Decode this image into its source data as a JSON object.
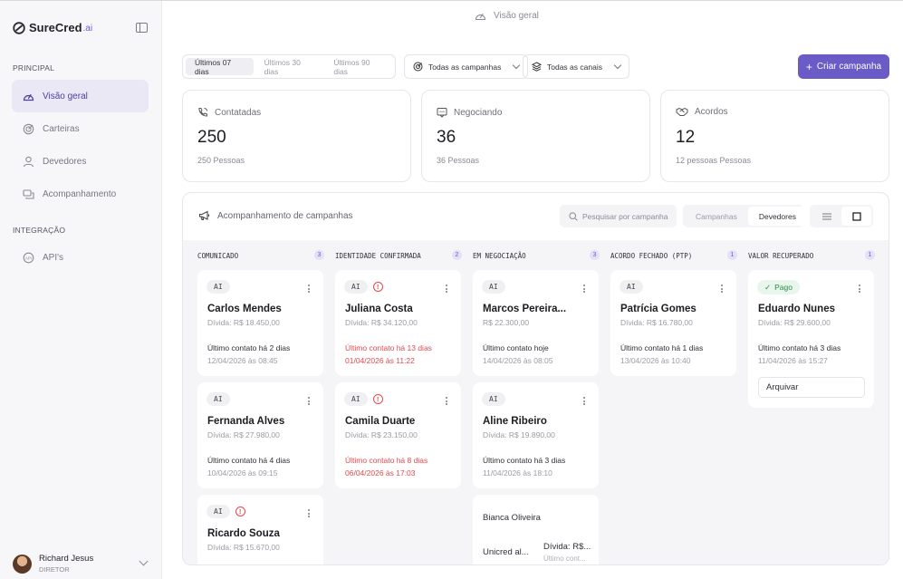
{
  "brand": {
    "name": "SureCred",
    "suffix": ".ai"
  },
  "sidebar": {
    "section_principal": "PRINCIPAL",
    "items": [
      {
        "label": "Visão geral",
        "icon": "gauge-icon",
        "active": true
      },
      {
        "label": "Carteiras",
        "icon": "target-icon"
      },
      {
        "label": "Devedores",
        "icon": "user-icon"
      },
      {
        "label": "Acompanhamento",
        "icon": "chat-icon"
      }
    ],
    "section_integracao": "INTEGRAÇÃO",
    "integration_items": [
      {
        "label": "API's",
        "icon": "api-icon"
      }
    ],
    "user": {
      "name": "Richard Jesus",
      "role": "DIRETOR"
    }
  },
  "header": {
    "title": "Visão geral"
  },
  "filters": {
    "periods": [
      "Últimos 07 dias",
      "Últimos 30 dias",
      "Últimos 90 dias"
    ],
    "campaigns": "Todas as campanhas",
    "channels": "Todas as canais",
    "create_label": "Criar campanha"
  },
  "stats": [
    {
      "label": "Contatadas",
      "value": "250",
      "sub": "250 Pessoas",
      "icon": "phone-icon"
    },
    {
      "label": "Negociando",
      "value": "36",
      "sub": "36 Pessoas",
      "icon": "message-icon"
    },
    {
      "label": "Acordos",
      "value": "12",
      "sub": "12 pessoas Pessoas",
      "icon": "handshake-icon"
    }
  ],
  "board": {
    "title": "Acompanhamento de campanhas",
    "search_placeholder": "Pesquisar por campanha",
    "view_tabs": [
      "Campanhas",
      "Devedores"
    ],
    "columns": [
      {
        "title": "COMUNICADO",
        "count": "3",
        "cards": [
          {
            "tag": "AI",
            "warn": false,
            "name": "Carlos Mendes",
            "debt": "Dívida: R$ 18.450,00",
            "contact": "Último contato há 2 dias",
            "date": "12/04/2026 às 08:45",
            "overdue": false
          },
          {
            "tag": "AI",
            "warn": false,
            "name": "Fernanda Alves",
            "debt": "Dívida: R$ 27.980,00",
            "contact": "Último contato há 4 dias",
            "date": "10/04/2026 às 09:15",
            "overdue": false
          },
          {
            "tag": "AI",
            "warn": true,
            "name": "Ricardo Souza",
            "debt": "Dívida: R$ 15.670,00"
          }
        ]
      },
      {
        "title": "IDENTIDADE CONFIRMADA",
        "count": "2",
        "cards": [
          {
            "tag": "AI",
            "warn": true,
            "name": "Juliana Costa",
            "debt": "Dívida: R$ 34.120,00",
            "contact": "Último contato há 13 dias",
            "date": "01/04/2026 às 11:22",
            "overdue": true
          },
          {
            "tag": "AI",
            "warn": true,
            "name": "Camila Duarte",
            "debt": "Dívida: R$ 23.150,00",
            "contact": "Último contato há 8 dias",
            "date": "06/04/2026 às 17:03",
            "overdue": true
          }
        ]
      },
      {
        "title": "EM NEGOCIAÇÃO",
        "count": "3",
        "cards": [
          {
            "tag": "AI",
            "warn": false,
            "name": "Marcos Pereira...",
            "debt": "R$ 22.300,00",
            "contact": "Último contato hoje",
            "date": "14/04/2026 às 08:05",
            "overdue": false
          },
          {
            "tag": "AI",
            "warn": false,
            "name": "Aline Ribeiro",
            "debt": "Dívida: R$ 19.890,00",
            "contact": "Último contato há 3 dias",
            "date": "11/04/2026 às 18:10",
            "overdue": false
          },
          {
            "name": "Bianca Oliveira",
            "left": "Unicred al...",
            "right": "Dívida: R$...",
            "right_sub": "Último cont..."
          }
        ]
      },
      {
        "title": "ACORDO FECHADO (PTP)",
        "count": "1",
        "cards": [
          {
            "tag": "AI",
            "warn": false,
            "name": "Patrícia Gomes",
            "debt": "Dívida: R$ 16.780,00",
            "contact": "Último contato há 1 dias",
            "date": "13/04/2026 às 10:40",
            "overdue": false
          }
        ]
      },
      {
        "title": "VALOR RECUPERADO",
        "count": "1",
        "cards": [
          {
            "tag": "Pago",
            "name": "Eduardo Nunes",
            "debt": "Dívida: R$ 29.600,00",
            "contact": "Último contato há 3 dias",
            "date": "11/04/2026 às 15:27",
            "archive": "Arquivar"
          }
        ]
      }
    ]
  },
  "colors": {
    "accent": "#6b5bc7",
    "danger": "#e5484d",
    "success": "#2f8a4b"
  }
}
